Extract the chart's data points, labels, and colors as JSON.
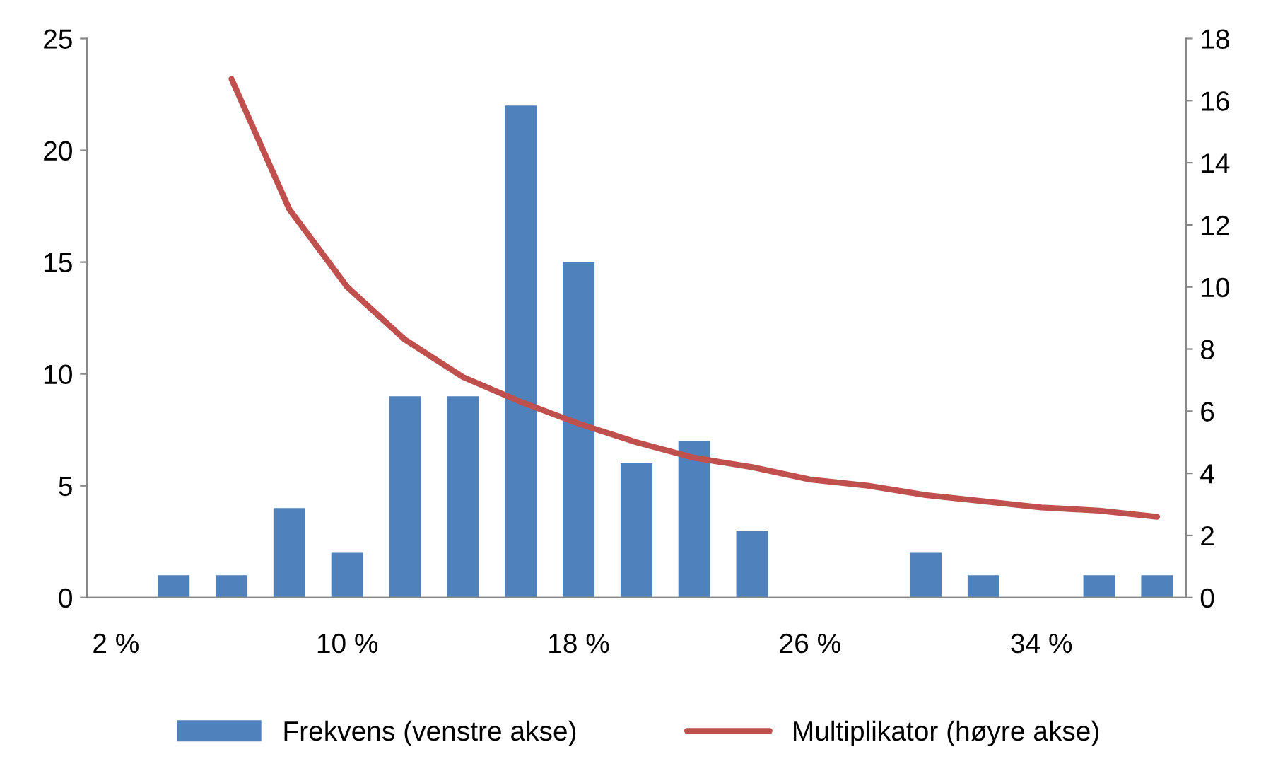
{
  "chart_data": {
    "type": "bar",
    "categories": [
      "2 %",
      null,
      null,
      null,
      "10 %",
      null,
      null,
      null,
      "18 %",
      null,
      null,
      null,
      "26 %",
      null,
      null,
      null,
      "34 %",
      null,
      null
    ],
    "series": [
      {
        "name": "Frekvens (venstre akse)",
        "color": "#4f81bd",
        "values": [
          0,
          1,
          1,
          4,
          2,
          9,
          9,
          22,
          15,
          6,
          7,
          3,
          0,
          0,
          2,
          1,
          0,
          1,
          1
        ]
      },
      {
        "name": "Multiplikator (høyre akse)",
        "type": "line",
        "axis": "y2",
        "color": "#c0504d",
        "values": [
          null,
          null,
          16.7,
          12.5,
          10.0,
          8.3,
          7.1,
          6.3,
          5.6,
          5.0,
          4.5,
          4.2,
          3.8,
          3.6,
          3.3,
          3.1,
          2.9,
          2.8,
          2.6
        ]
      }
    ],
    "ylim": [
      0,
      25
    ],
    "yticks": [
      0,
      5,
      10,
      15,
      20,
      25
    ],
    "y2lim": [
      0,
      18
    ],
    "y2ticks": [
      0,
      2,
      4,
      6,
      8,
      10,
      12,
      14,
      16,
      18
    ],
    "grid": false,
    "legend": "bottom",
    "marker": "none",
    "line_style": "solid"
  }
}
